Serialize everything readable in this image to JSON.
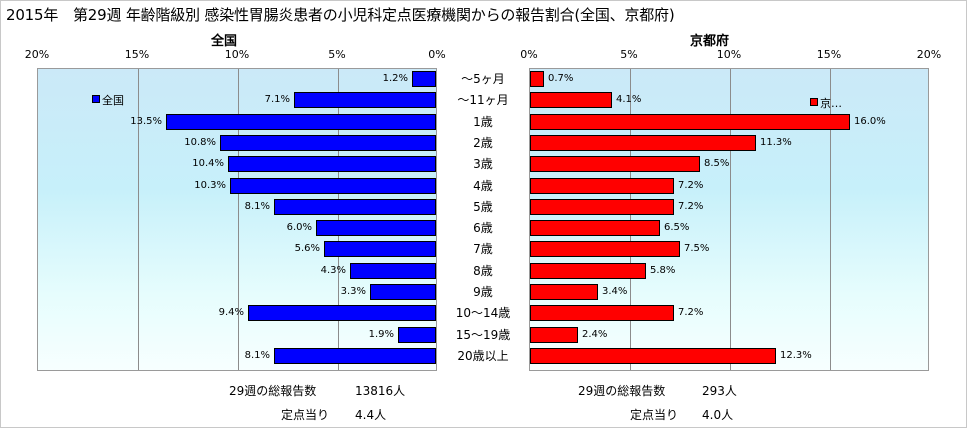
{
  "title": "2015年　第29週 年齢階級別 感染性胃腸炎患者の小児科定点医療機関からの報告割合(全国、京都府)",
  "chart_data": [
    {
      "type": "bar",
      "title": "全国",
      "orientation": "horizontal",
      "direction": "right-to-left",
      "x_ticks": [
        "20%",
        "15%",
        "10%",
        "5%",
        "0%"
      ],
      "xlim": [
        0,
        20
      ],
      "grid": true,
      "legend": "top-left",
      "categories": [
        "～5ヶ月",
        "～11ヶ月",
        "1歳",
        "2歳",
        "3歳",
        "4歳",
        "5歳",
        "6歳",
        "7歳",
        "8歳",
        "9歳",
        "10～14歳",
        "15～19歳",
        "20歳以上"
      ],
      "series": [
        {
          "name": "全国",
          "color": "#0000ff",
          "values": [
            1.2,
            7.1,
            13.5,
            10.8,
            10.4,
            10.3,
            8.1,
            6.0,
            5.6,
            4.3,
            3.3,
            9.4,
            1.9,
            8.1
          ],
          "labels": [
            "1.2%",
            "7.1%",
            "13.5%",
            "10.8%",
            "10.4%",
            "10.3%",
            "8.1%",
            "6.0%",
            "5.6%",
            "4.3%",
            "3.3%",
            "9.4%",
            "1.9%",
            "8.1%"
          ]
        }
      ]
    },
    {
      "type": "bar",
      "title": "京都府",
      "orientation": "horizontal",
      "x_ticks": [
        "0%",
        "5%",
        "10%",
        "15%",
        "20%"
      ],
      "xlim": [
        0,
        20
      ],
      "grid": true,
      "legend": "top-right",
      "categories": [
        "～5ヶ月",
        "～11ヶ月",
        "1歳",
        "2歳",
        "3歳",
        "4歳",
        "5歳",
        "6歳",
        "7歳",
        "8歳",
        "9歳",
        "10～14歳",
        "15～19歳",
        "20歳以上"
      ],
      "series": [
        {
          "name": "京…",
          "color": "#ff0000",
          "values": [
            0.7,
            4.1,
            16.0,
            11.3,
            8.5,
            7.2,
            7.2,
            6.5,
            7.5,
            5.8,
            3.4,
            7.2,
            2.4,
            12.3
          ],
          "labels": [
            "0.7%",
            "4.1%",
            "16.0%",
            "11.3%",
            "8.5%",
            "7.2%",
            "7.2%",
            "6.5%",
            "7.5%",
            "5.8%",
            "3.4%",
            "7.2%",
            "2.4%",
            "12.3%"
          ]
        }
      ]
    }
  ],
  "footer": {
    "national": {
      "total_label": "29週の総報告数",
      "total_value": "13816人",
      "per_label": "定点当り",
      "per_value": "4.4人"
    },
    "kyoto": {
      "total_label": "29週の総報告数",
      "total_value": "293人",
      "per_label": "定点当り",
      "per_value": "4.0人"
    }
  }
}
